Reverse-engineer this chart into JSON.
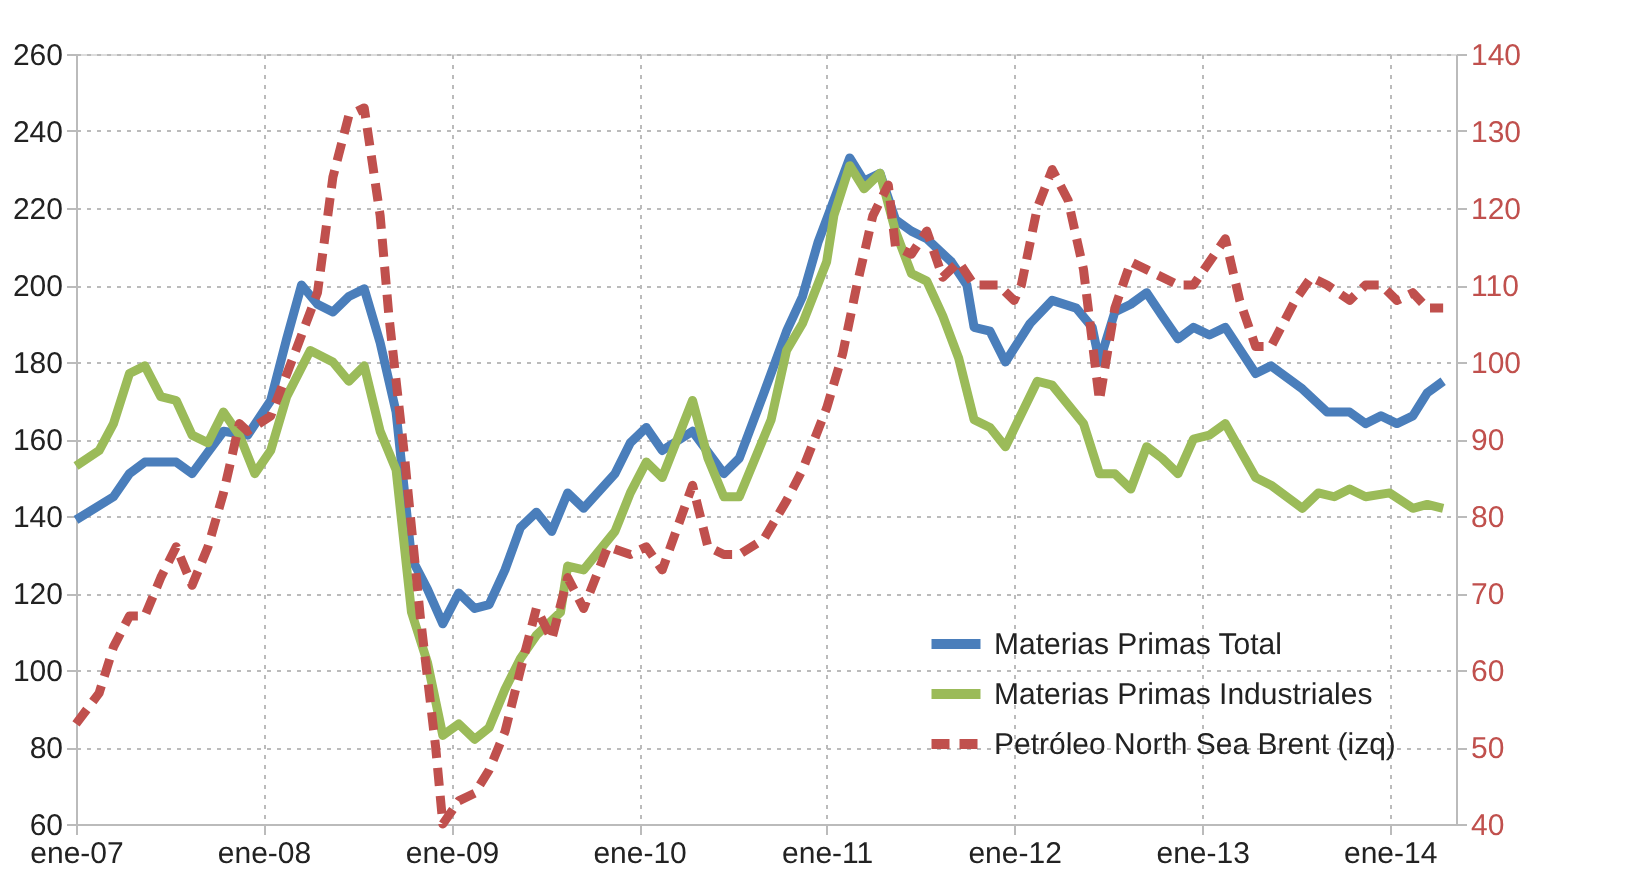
{
  "chart_data": {
    "type": "line",
    "xlim": [
      "2007-01-01",
      "2014-05-10"
    ],
    "xticks": [
      {
        "value": "2007-01-01",
        "label": "ene-07"
      },
      {
        "value": "2008-01-01",
        "label": "ene-08"
      },
      {
        "value": "2009-01-01",
        "label": "ene-09"
      },
      {
        "value": "2010-01-01",
        "label": "ene-10"
      },
      {
        "value": "2011-01-01",
        "label": "ene-11"
      },
      {
        "value": "2012-01-01",
        "label": "ene-12"
      },
      {
        "value": "2013-01-01",
        "label": "ene-13"
      },
      {
        "value": "2014-01-01",
        "label": "ene-14"
      }
    ],
    "ylim": [
      60,
      260
    ],
    "yticks": [
      60,
      80,
      100,
      120,
      140,
      160,
      180,
      200,
      220,
      240,
      260
    ],
    "y2lim": [
      40,
      140
    ],
    "y2ticks": [
      40,
      50,
      60,
      70,
      80,
      90,
      100,
      110,
      120,
      130,
      140
    ],
    "grid": true,
    "legend": "bottom right",
    "series": [
      {
        "name": "Materias Primas Total",
        "color": "#4a7ebb",
        "line_style": "solid",
        "x": [
          "2007-01-01",
          "2007-03-15",
          "2007-04-15",
          "2007-05-15",
          "2007-07-15",
          "2007-08-15",
          "2007-10-15",
          "2007-12-01",
          "2008-01-15",
          "2008-02-15",
          "2008-03-15",
          "2008-04-15",
          "2008-05-15",
          "2008-06-15",
          "2008-07-15",
          "2008-08-15",
          "2008-09-15",
          "2008-10-15",
          "2008-11-15",
          "2008-12-15",
          "2009-01-15",
          "2009-02-15",
          "2009-03-15",
          "2009-04-15",
          "2009-05-15",
          "2009-06-15",
          "2009-07-15",
          "2009-08-15",
          "2009-09-15",
          "2009-11-15",
          "2009-12-15",
          "2010-01-15",
          "2010-02-15",
          "2010-04-15",
          "2010-06-15",
          "2010-07-15",
          "2010-09-01",
          "2010-10-15",
          "2010-11-15",
          "2010-12-15",
          "2011-01-15",
          "2011-02-15",
          "2011-03-15",
          "2011-04-15",
          "2011-05-15",
          "2011-06-15",
          "2011-07-15",
          "2011-09-01",
          "2011-10-01",
          "2011-10-15",
          "2011-11-15",
          "2011-12-15",
          "2012-02-01",
          "2012-03-15",
          "2012-05-01",
          "2012-06-01",
          "2012-06-15",
          "2012-07-15",
          "2012-08-15",
          "2012-09-15",
          "2012-10-15",
          "2012-11-15",
          "2012-12-15",
          "2013-01-15",
          "2013-02-15",
          "2013-04-15",
          "2013-05-15",
          "2013-07-15",
          "2013-09-01",
          "2013-10-15",
          "2013-11-15",
          "2013-12-15",
          "2014-01-15",
          "2014-02-15",
          "2014-03-15",
          "2014-04-15"
        ],
        "values": [
          139,
          145,
          151,
          154,
          154,
          151,
          162,
          161,
          170,
          186,
          200,
          195,
          193,
          197,
          199,
          185,
          167,
          129,
          121,
          112,
          120,
          116,
          117,
          126,
          137,
          141,
          136,
          146,
          142,
          151,
          159,
          163,
          157,
          162,
          151,
          155,
          172,
          188,
          197,
          211,
          222,
          233,
          227,
          229,
          217,
          214,
          212,
          206,
          200,
          189,
          188,
          180,
          190,
          196,
          194,
          189,
          180,
          193,
          195,
          198,
          192,
          186,
          189,
          187,
          189,
          177,
          179,
          173,
          167,
          167,
          164,
          166,
          164,
          166,
          172,
          175
        ]
      },
      {
        "name": "Materias Primas Industriales",
        "color": "#9bbb59",
        "line_style": "solid",
        "x": [
          "2007-01-01",
          "2007-02-15",
          "2007-03-15",
          "2007-04-15",
          "2007-05-15",
          "2007-06-15",
          "2007-07-15",
          "2007-08-15",
          "2007-09-15",
          "2007-10-15",
          "2007-11-15",
          "2007-12-15",
          "2008-01-15",
          "2008-02-15",
          "2008-04-01",
          "2008-05-15",
          "2008-06-15",
          "2008-07-15",
          "2008-08-15",
          "2008-09-15",
          "2008-10-15",
          "2008-11-15",
          "2008-12-15",
          "2009-01-15",
          "2009-02-15",
          "2009-03-15",
          "2009-04-15",
          "2009-05-15",
          "2009-06-15",
          "2009-08-01",
          "2009-08-15",
          "2009-09-15",
          "2009-11-15",
          "2009-12-15",
          "2010-01-15",
          "2010-02-15",
          "2010-04-15",
          "2010-05-15",
          "2010-06-15",
          "2010-07-15",
          "2010-09-15",
          "2010-10-15",
          "2010-11-15",
          "2011-01-01",
          "2011-01-15",
          "2011-02-15",
          "2011-03-15",
          "2011-04-15",
          "2011-05-15",
          "2011-06-15",
          "2011-07-15",
          "2011-08-15",
          "2011-09-15",
          "2011-10-15",
          "2011-11-15",
          "2011-12-15",
          "2012-02-15",
          "2012-03-15",
          "2012-05-15",
          "2012-06-15",
          "2012-07-15",
          "2012-08-15",
          "2012-09-15",
          "2012-10-15",
          "2012-11-15",
          "2012-12-15",
          "2013-01-15",
          "2013-02-15",
          "2013-04-15",
          "2013-05-15",
          "2013-07-15",
          "2013-08-15",
          "2013-09-15",
          "2013-10-15",
          "2013-11-15",
          "2014-01-01",
          "2014-02-15",
          "2014-03-15",
          "2014-04-15"
        ],
        "values": [
          153,
          157,
          164,
          177,
          179,
          171,
          170,
          161,
          159,
          167,
          161,
          151,
          157,
          171,
          183,
          180,
          175,
          179,
          162,
          152,
          115,
          102,
          83,
          86,
          82,
          85,
          95,
          103,
          109,
          115,
          127,
          126,
          136,
          146,
          154,
          150,
          170,
          155,
          145,
          145,
          165,
          183,
          190,
          206,
          218,
          231,
          225,
          229,
          214,
          203,
          201,
          192,
          181,
          165,
          163,
          158,
          175,
          174,
          164,
          151,
          151,
          147,
          158,
          155,
          151,
          160,
          161,
          164,
          150,
          148,
          142,
          146,
          145,
          147,
          145,
          146,
          142,
          143,
          142
        ]
      },
      {
        "name": "Petróleo North Sea Brent (izq)",
        "color": "#c0504d",
        "line_style": "dashed",
        "axis": "y2",
        "x": [
          "2007-01-01",
          "2007-02-15",
          "2007-03-15",
          "2007-04-15",
          "2007-05-15",
          "2007-06-15",
          "2007-07-15",
          "2007-08-15",
          "2007-09-15",
          "2007-10-15",
          "2007-11-15",
          "2007-12-01",
          "2008-01-15",
          "2008-03-01",
          "2008-04-15",
          "2008-05-15",
          "2008-06-15",
          "2008-07-15",
          "2008-08-15",
          "2008-09-01",
          "2008-10-01",
          "2008-11-01",
          "2008-12-01",
          "2008-12-15",
          "2009-01-15",
          "2009-02-15",
          "2009-03-15",
          "2009-04-15",
          "2009-05-15",
          "2009-06-15",
          "2009-07-15",
          "2009-08-15",
          "2009-09-15",
          "2009-11-01",
          "2009-12-15",
          "2010-01-15",
          "2010-02-15",
          "2010-04-15",
          "2010-05-15",
          "2010-06-15",
          "2010-07-15",
          "2010-09-01",
          "2010-10-15",
          "2010-11-15",
          "2011-01-01",
          "2011-02-01",
          "2011-03-01",
          "2011-04-01",
          "2011-05-01",
          "2011-05-15",
          "2011-06-15",
          "2011-07-15",
          "2011-08-15",
          "2011-09-15",
          "2011-10-15",
          "2011-12-01",
          "2012-01-01",
          "2012-01-15",
          "2012-02-15",
          "2012-03-15",
          "2012-04-15",
          "2012-05-15",
          "2012-06-15",
          "2012-07-15",
          "2012-08-15",
          "2012-09-15",
          "2012-11-15",
          "2012-12-15",
          "2013-02-15",
          "2013-03-15",
          "2013-04-15",
          "2013-05-15",
          "2013-07-01",
          "2013-08-01",
          "2013-09-01",
          "2013-10-15",
          "2013-11-15",
          "2013-12-15",
          "2014-01-15",
          "2014-02-15",
          "2014-03-15",
          "2014-04-15"
        ],
        "values": [
          53,
          57,
          63,
          67,
          67,
          72,
          76,
          71,
          76,
          83,
          92,
          91,
          93,
          101,
          109,
          124,
          132,
          133,
          119,
          106,
          88,
          67,
          50,
          40,
          43,
          44,
          47,
          52,
          60,
          68,
          64,
          72,
          68,
          76,
          75,
          76,
          73,
          84,
          76,
          75,
          75,
          77,
          82,
          86,
          94,
          101,
          110,
          119,
          123,
          115,
          114,
          117,
          111,
          113,
          110,
          110,
          108,
          110,
          120,
          125,
          121,
          112,
          95,
          107,
          113,
          112,
          110,
          110,
          116,
          108,
          102,
          102,
          108,
          111,
          110,
          108,
          110,
          110,
          108,
          109,
          107,
          107
        ]
      }
    ]
  }
}
